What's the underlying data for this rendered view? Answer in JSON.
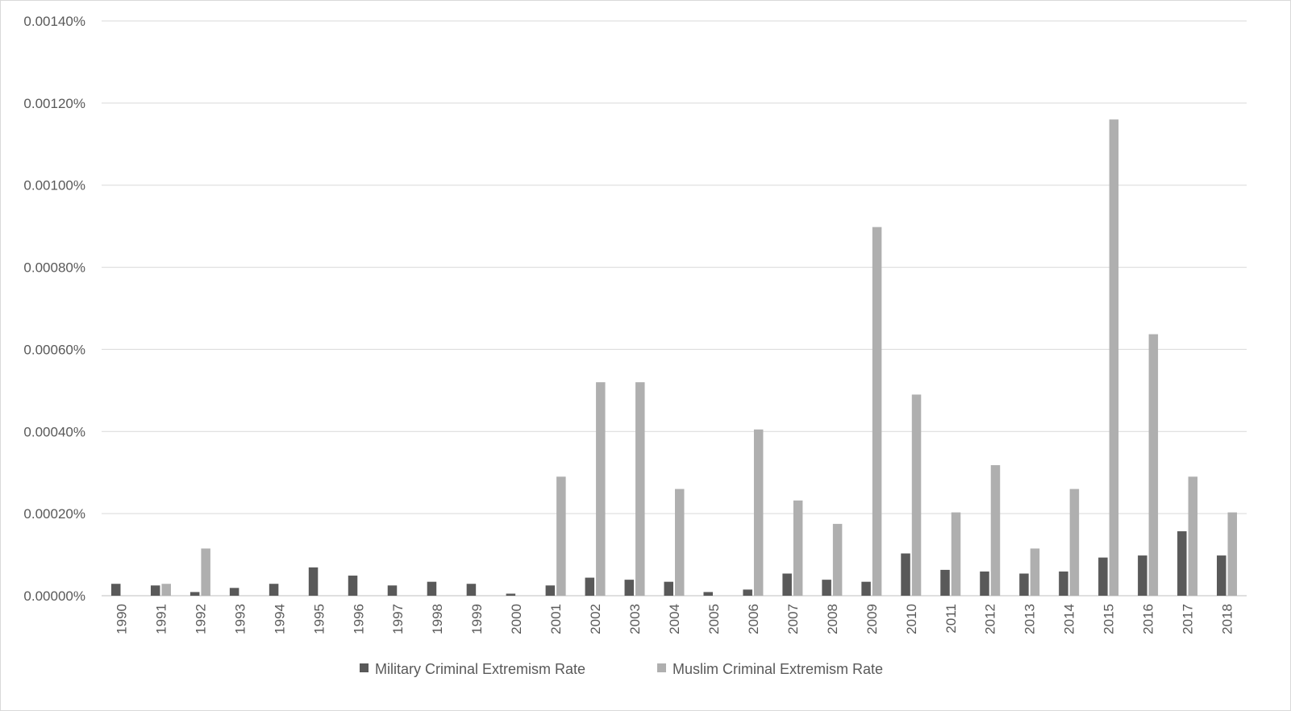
{
  "chart_data": {
    "type": "bar",
    "categories": [
      "1990",
      "1991",
      "1992",
      "1993",
      "1994",
      "1995",
      "1996",
      "1997",
      "1998",
      "1999",
      "2000",
      "2001",
      "2002",
      "2003",
      "2004",
      "2005",
      "2006",
      "2007",
      "2008",
      "2009",
      "2010",
      "2011",
      "2012",
      "2013",
      "2014",
      "2015",
      "2016",
      "2017",
      "2018"
    ],
    "series": [
      {
        "name": "Military Criminal Extremism Rate",
        "color": "#595959",
        "values": [
          2.9e-05,
          2.5e-05,
          9e-06,
          1.9e-05,
          2.9e-05,
          6.9e-05,
          4.9e-05,
          2.5e-05,
          3.4e-05,
          2.9e-05,
          5e-06,
          2.5e-05,
          4.4e-05,
          3.9e-05,
          3.4e-05,
          9e-06,
          1.5e-05,
          5.4e-05,
          3.9e-05,
          3.4e-05,
          0.000103,
          6.3e-05,
          5.9e-05,
          5.4e-05,
          5.9e-05,
          9.3e-05,
          9.8e-05,
          0.000157,
          9.8e-05
        ]
      },
      {
        "name": "Muslim Criminal Extremism Rate",
        "color": "#afafaf",
        "values": [
          0,
          2.9e-05,
          0.000115,
          0,
          0,
          0,
          0,
          0,
          0,
          0,
          0,
          0.00029,
          0.00052,
          0.00052,
          0.00026,
          0,
          0.000405,
          0.000232,
          0.000175,
          0.000898,
          0.00049,
          0.000203,
          0.000318,
          0.000115,
          0.00026,
          0.00116,
          0.000637,
          0.00029,
          0.000203
        ]
      }
    ],
    "title": "",
    "xlabel": "",
    "ylabel": "",
    "ylim": [
      0,
      0.0014
    ],
    "yticks": [
      0,
      0.0002,
      0.0004,
      0.0006,
      0.0008,
      0.001,
      0.0012,
      0.0014
    ],
    "ytick_labels": [
      "0.00000%",
      "0.00020%",
      "0.00040%",
      "0.00060%",
      "0.00080%",
      "0.00100%",
      "0.00120%",
      "0.00140%"
    ],
    "grid": true,
    "legend": "bottom"
  }
}
